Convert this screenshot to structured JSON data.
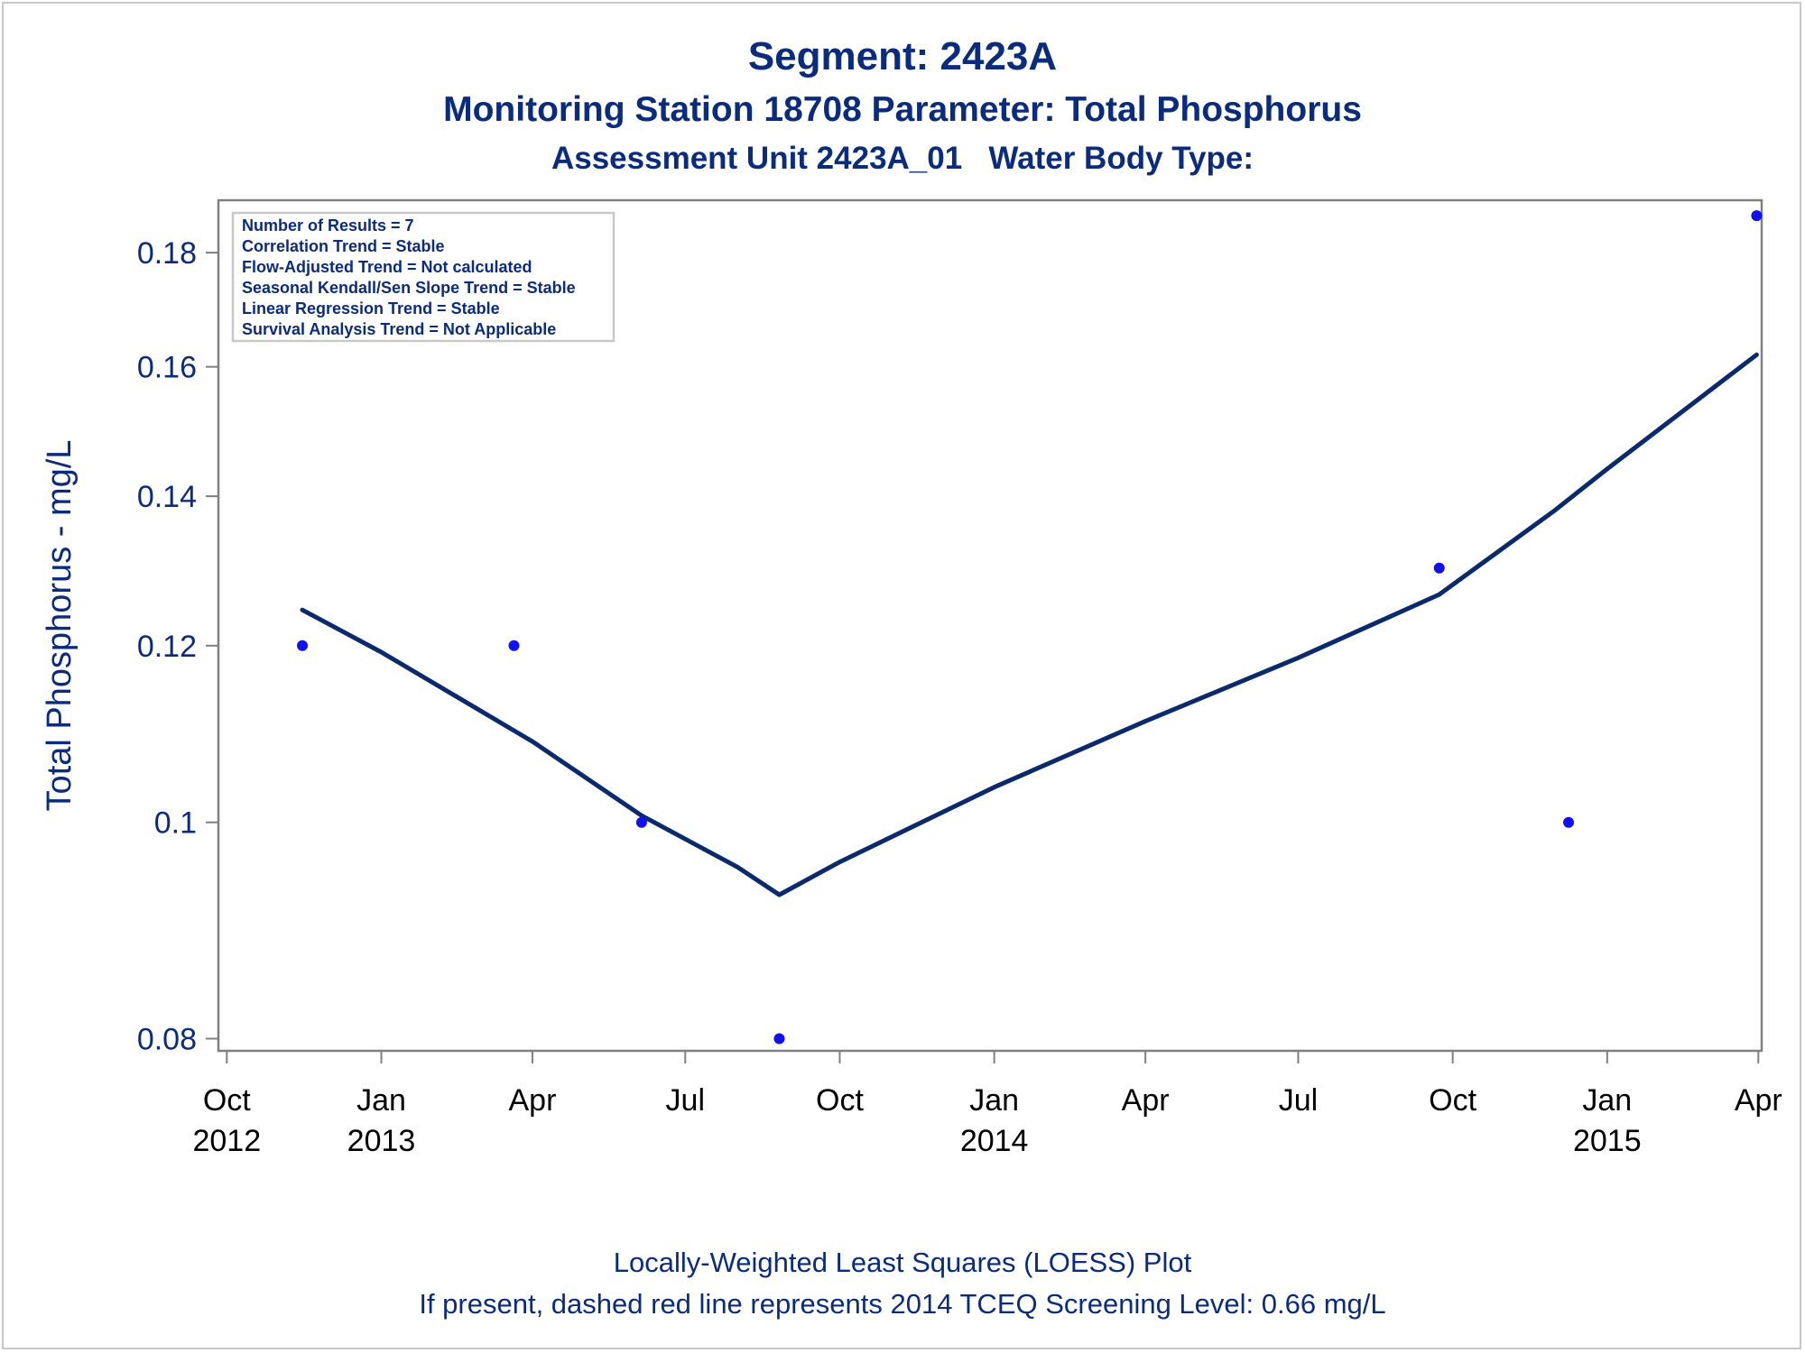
{
  "colors": {
    "title": "#0b2c7c",
    "loess_line": "#0b2a6e",
    "points": "#1010f0",
    "axis": "#808080",
    "tick_text": "#0b2c7c",
    "x_tick_text": "#000000",
    "frame": "#c8c8c8"
  },
  "titles": {
    "line1": "Segment: 2423A",
    "line2": "Monitoring Station 18708 Parameter: Total Phosphorus",
    "line3": "Assessment Unit 2423A_01   Water Body Type:"
  },
  "footnotes": {
    "line1": "Locally-Weighted Least Squares (LOESS) Plot",
    "line2": "If present, dashed red line represents 2014 TCEQ Screening Level: 0.66 mg/L"
  },
  "chart_data": {
    "type": "scatter",
    "ylabel": "Total Phosphorus - mg/L",
    "xlabel": "",
    "y_scale": "log",
    "ylim": [
      0.079,
      0.19
    ],
    "xlim": [
      "2012-09-26",
      "2015-04-03"
    ],
    "grid": false,
    "y_ticks": [
      {
        "value": 0.08,
        "label": "0.08"
      },
      {
        "value": 0.1,
        "label": "0.1"
      },
      {
        "value": 0.12,
        "label": "0.12"
      },
      {
        "value": 0.14,
        "label": "0.14"
      },
      {
        "value": 0.16,
        "label": "0.16"
      },
      {
        "value": 0.18,
        "label": "0.18"
      }
    ],
    "x_ticks": [
      {
        "date": "2012-10-01",
        "label": "Oct",
        "year": "2012"
      },
      {
        "date": "2013-01-01",
        "label": "Jan",
        "year": "2013"
      },
      {
        "date": "2013-04-01",
        "label": "Apr",
        "year": ""
      },
      {
        "date": "2013-07-01",
        "label": "Jul",
        "year": ""
      },
      {
        "date": "2013-10-01",
        "label": "Oct",
        "year": ""
      },
      {
        "date": "2014-01-01",
        "label": "Jan",
        "year": "2014"
      },
      {
        "date": "2014-04-01",
        "label": "Apr",
        "year": ""
      },
      {
        "date": "2014-07-01",
        "label": "Jul",
        "year": ""
      },
      {
        "date": "2014-10-01",
        "label": "Oct",
        "year": ""
      },
      {
        "date": "2015-01-01",
        "label": "Jan",
        "year": "2015"
      },
      {
        "date": "2015-04-01",
        "label": "Apr",
        "year": ""
      }
    ],
    "series": [
      {
        "type": "scatter",
        "points": [
          {
            "x": "2012-11-15",
            "y": 0.12
          },
          {
            "x": "2013-03-21",
            "y": 0.12
          },
          {
            "x": "2013-06-05",
            "y": 0.1
          },
          {
            "x": "2013-08-26",
            "y": 0.08
          },
          {
            "x": "2014-09-23",
            "y": 0.13
          },
          {
            "x": "2014-12-09",
            "y": 0.1
          },
          {
            "x": "2015-03-31",
            "y": 0.187
          }
        ]
      },
      {
        "type": "line",
        "points": [
          {
            "x": "2012-11-15",
            "y": 0.1245
          },
          {
            "x": "2013-01-01",
            "y": 0.1192
          },
          {
            "x": "2013-04-01",
            "y": 0.1087
          },
          {
            "x": "2013-06-05",
            "y": 0.1007
          },
          {
            "x": "2013-08-01",
            "y": 0.0955
          },
          {
            "x": "2013-08-26",
            "y": 0.0928
          },
          {
            "x": "2013-10-01",
            "y": 0.096
          },
          {
            "x": "2014-01-01",
            "y": 0.1037
          },
          {
            "x": "2014-04-01",
            "y": 0.111
          },
          {
            "x": "2014-07-01",
            "y": 0.1185
          },
          {
            "x": "2014-09-23",
            "y": 0.1265
          },
          {
            "x": "2014-12-01",
            "y": 0.138
          },
          {
            "x": "2015-01-01",
            "y": 0.144
          },
          {
            "x": "2015-03-31",
            "y": 0.162
          }
        ]
      }
    ],
    "inset_box": {
      "position": "top-left",
      "lines": [
        "Number of Results = 7",
        "Correlation Trend = Stable",
        "Flow-Adjusted Trend = Not calculated",
        "Seasonal Kendall/Sen Slope Trend = Stable",
        "Linear Regression Trend = Stable",
        "Survival Analysis Trend = Not Applicable"
      ]
    }
  }
}
